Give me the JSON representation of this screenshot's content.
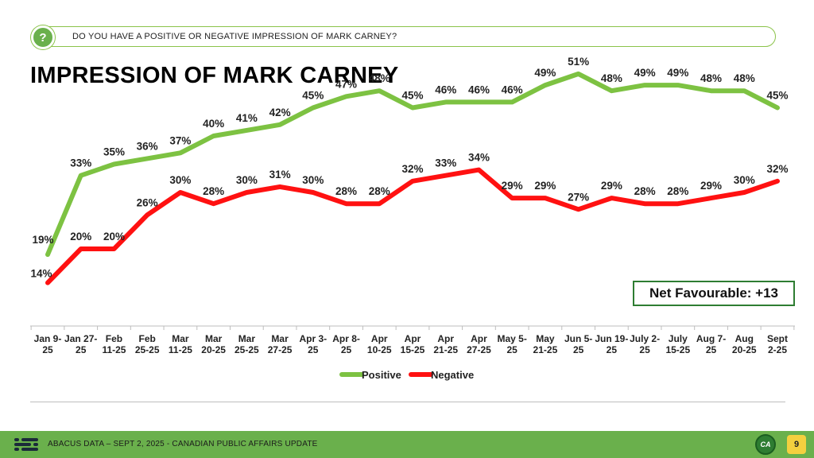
{
  "question": {
    "icon": "question-icon",
    "text": "DO YOU HAVE A POSITIVE OR NEGATIVE IMPRESSION OF MARK CARNEY?"
  },
  "title": "IMPRESSION OF MARK CARNEY",
  "net_favourable": "Net Favourable: +13",
  "footer": {
    "text": "ABACUS DATA – SEPT 2, 2025 - CANADIAN PUBLIC AFFAIRS UPDATE",
    "logo_icon": "abacus-logo-icon",
    "badge_text": "CA",
    "page_number": "9"
  },
  "colors": {
    "positive": "#7dc242",
    "negative": "#ff1111",
    "footer": "#6ab04c",
    "accent_border": "#2e7d32"
  },
  "chart_data": {
    "type": "line",
    "categories": [
      [
        "Jan 9-",
        "25"
      ],
      [
        "Jan 27-",
        "25"
      ],
      [
        "Feb",
        "11-25"
      ],
      [
        "Feb",
        "25-25"
      ],
      [
        "Mar",
        "11-25"
      ],
      [
        "Mar",
        "20-25"
      ],
      [
        "Mar",
        "25-25"
      ],
      [
        "Mar",
        "27-25"
      ],
      [
        "Apr 3-",
        "25"
      ],
      [
        "Apr 8-",
        "25"
      ],
      [
        "Apr",
        "10-25"
      ],
      [
        "Apr",
        "15-25"
      ],
      [
        "Apr",
        "21-25"
      ],
      [
        "Apr",
        "27-25"
      ],
      [
        "May 5-",
        "25"
      ],
      [
        "May",
        "21-25"
      ],
      [
        "Jun 5-",
        "25"
      ],
      [
        "Jun 19-",
        "25"
      ],
      [
        "July 2-",
        "25"
      ],
      [
        "July",
        "15-25"
      ],
      [
        "Aug 7-",
        "25"
      ],
      [
        "Aug",
        "20-25"
      ],
      [
        "Sept",
        "2-25"
      ]
    ],
    "series": [
      {
        "name": "Positive",
        "color": "#7dc242",
        "values": [
          19,
          33,
          35,
          36,
          37,
          40,
          41,
          42,
          45,
          47,
          48,
          45,
          46,
          46,
          46,
          49,
          51,
          48,
          49,
          49,
          48,
          48,
          45
        ]
      },
      {
        "name": "Negative",
        "color": "#ff1111",
        "values": [
          14,
          20,
          20,
          26,
          30,
          28,
          30,
          31,
          30,
          28,
          28,
          32,
          33,
          34,
          29,
          29,
          27,
          29,
          28,
          28,
          29,
          30,
          32
        ]
      }
    ],
    "value_suffix": "%",
    "ylim": [
      0,
      60
    ],
    "legend": [
      "Positive",
      "Negative"
    ],
    "legend_position": "bottom-center"
  }
}
